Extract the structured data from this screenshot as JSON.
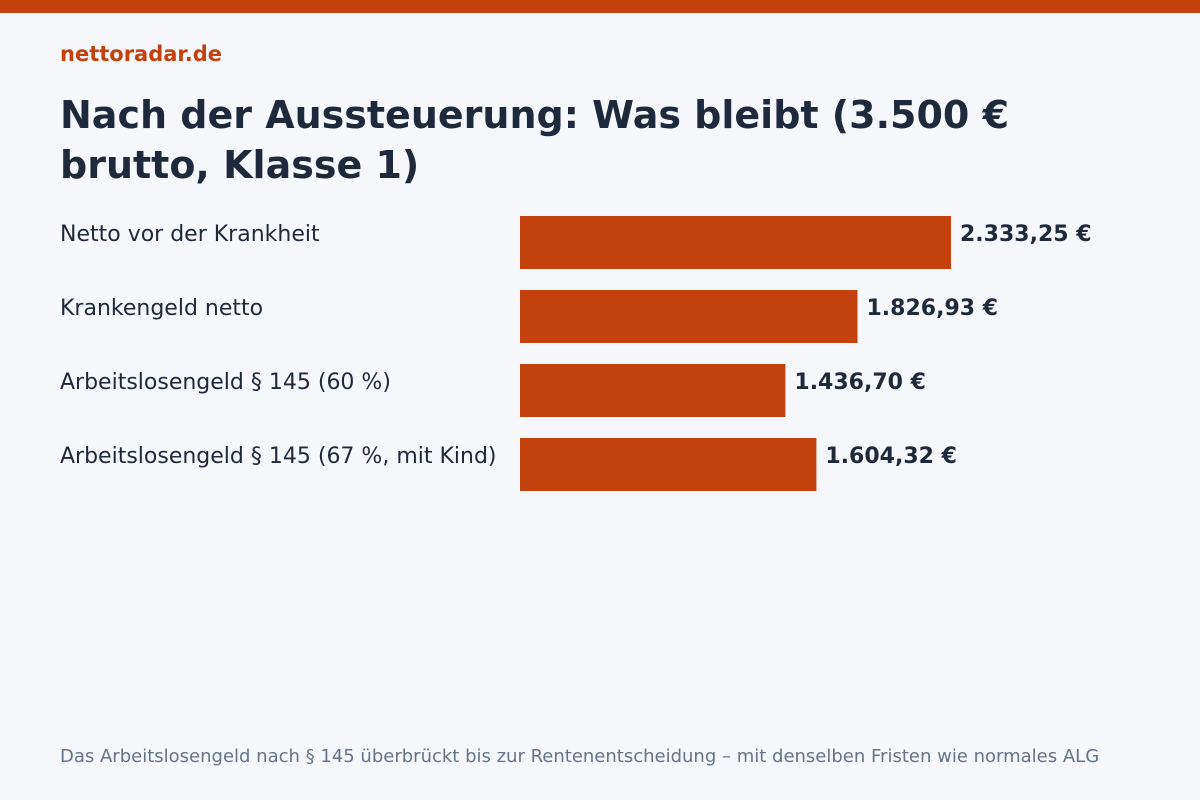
{
  "site": {
    "brand": "nettoradar.de"
  },
  "title": "Nach der Aussteuerung: Was bleibt (3.500 € brutto, Klasse 1)",
  "footnote": "Das Arbeitslosengeld nach § 145 überbrückt bis zur Rentenentscheidung – mit denselben Fristen wie normales ALG",
  "colors": {
    "accent": "#c2410c",
    "background": "#f6f7fb",
    "text": "#1e293b",
    "muted": "#64748b"
  },
  "chart_data": {
    "type": "bar",
    "orientation": "horizontal",
    "categories": [
      "Netto vor der Krankheit",
      "Krankengeld netto",
      "Arbeitslosengeld § 145 (60 %)",
      "Arbeitslosengeld § 145 (67 %, mit Kind)"
    ],
    "values": [
      2333.25,
      1826.93,
      1436.7,
      1604.32
    ],
    "value_labels": [
      "2.333,25 €",
      "1.826,93 €",
      "1.436,70 €",
      "1.604,32 €"
    ],
    "title": "Nach der Aussteuerung: Was bleibt (3.500 € brutto, Klasse 1)",
    "xlabel": "",
    "ylabel": "",
    "xlim": [
      0,
      2333.25
    ],
    "grid": false,
    "legend": "none"
  }
}
